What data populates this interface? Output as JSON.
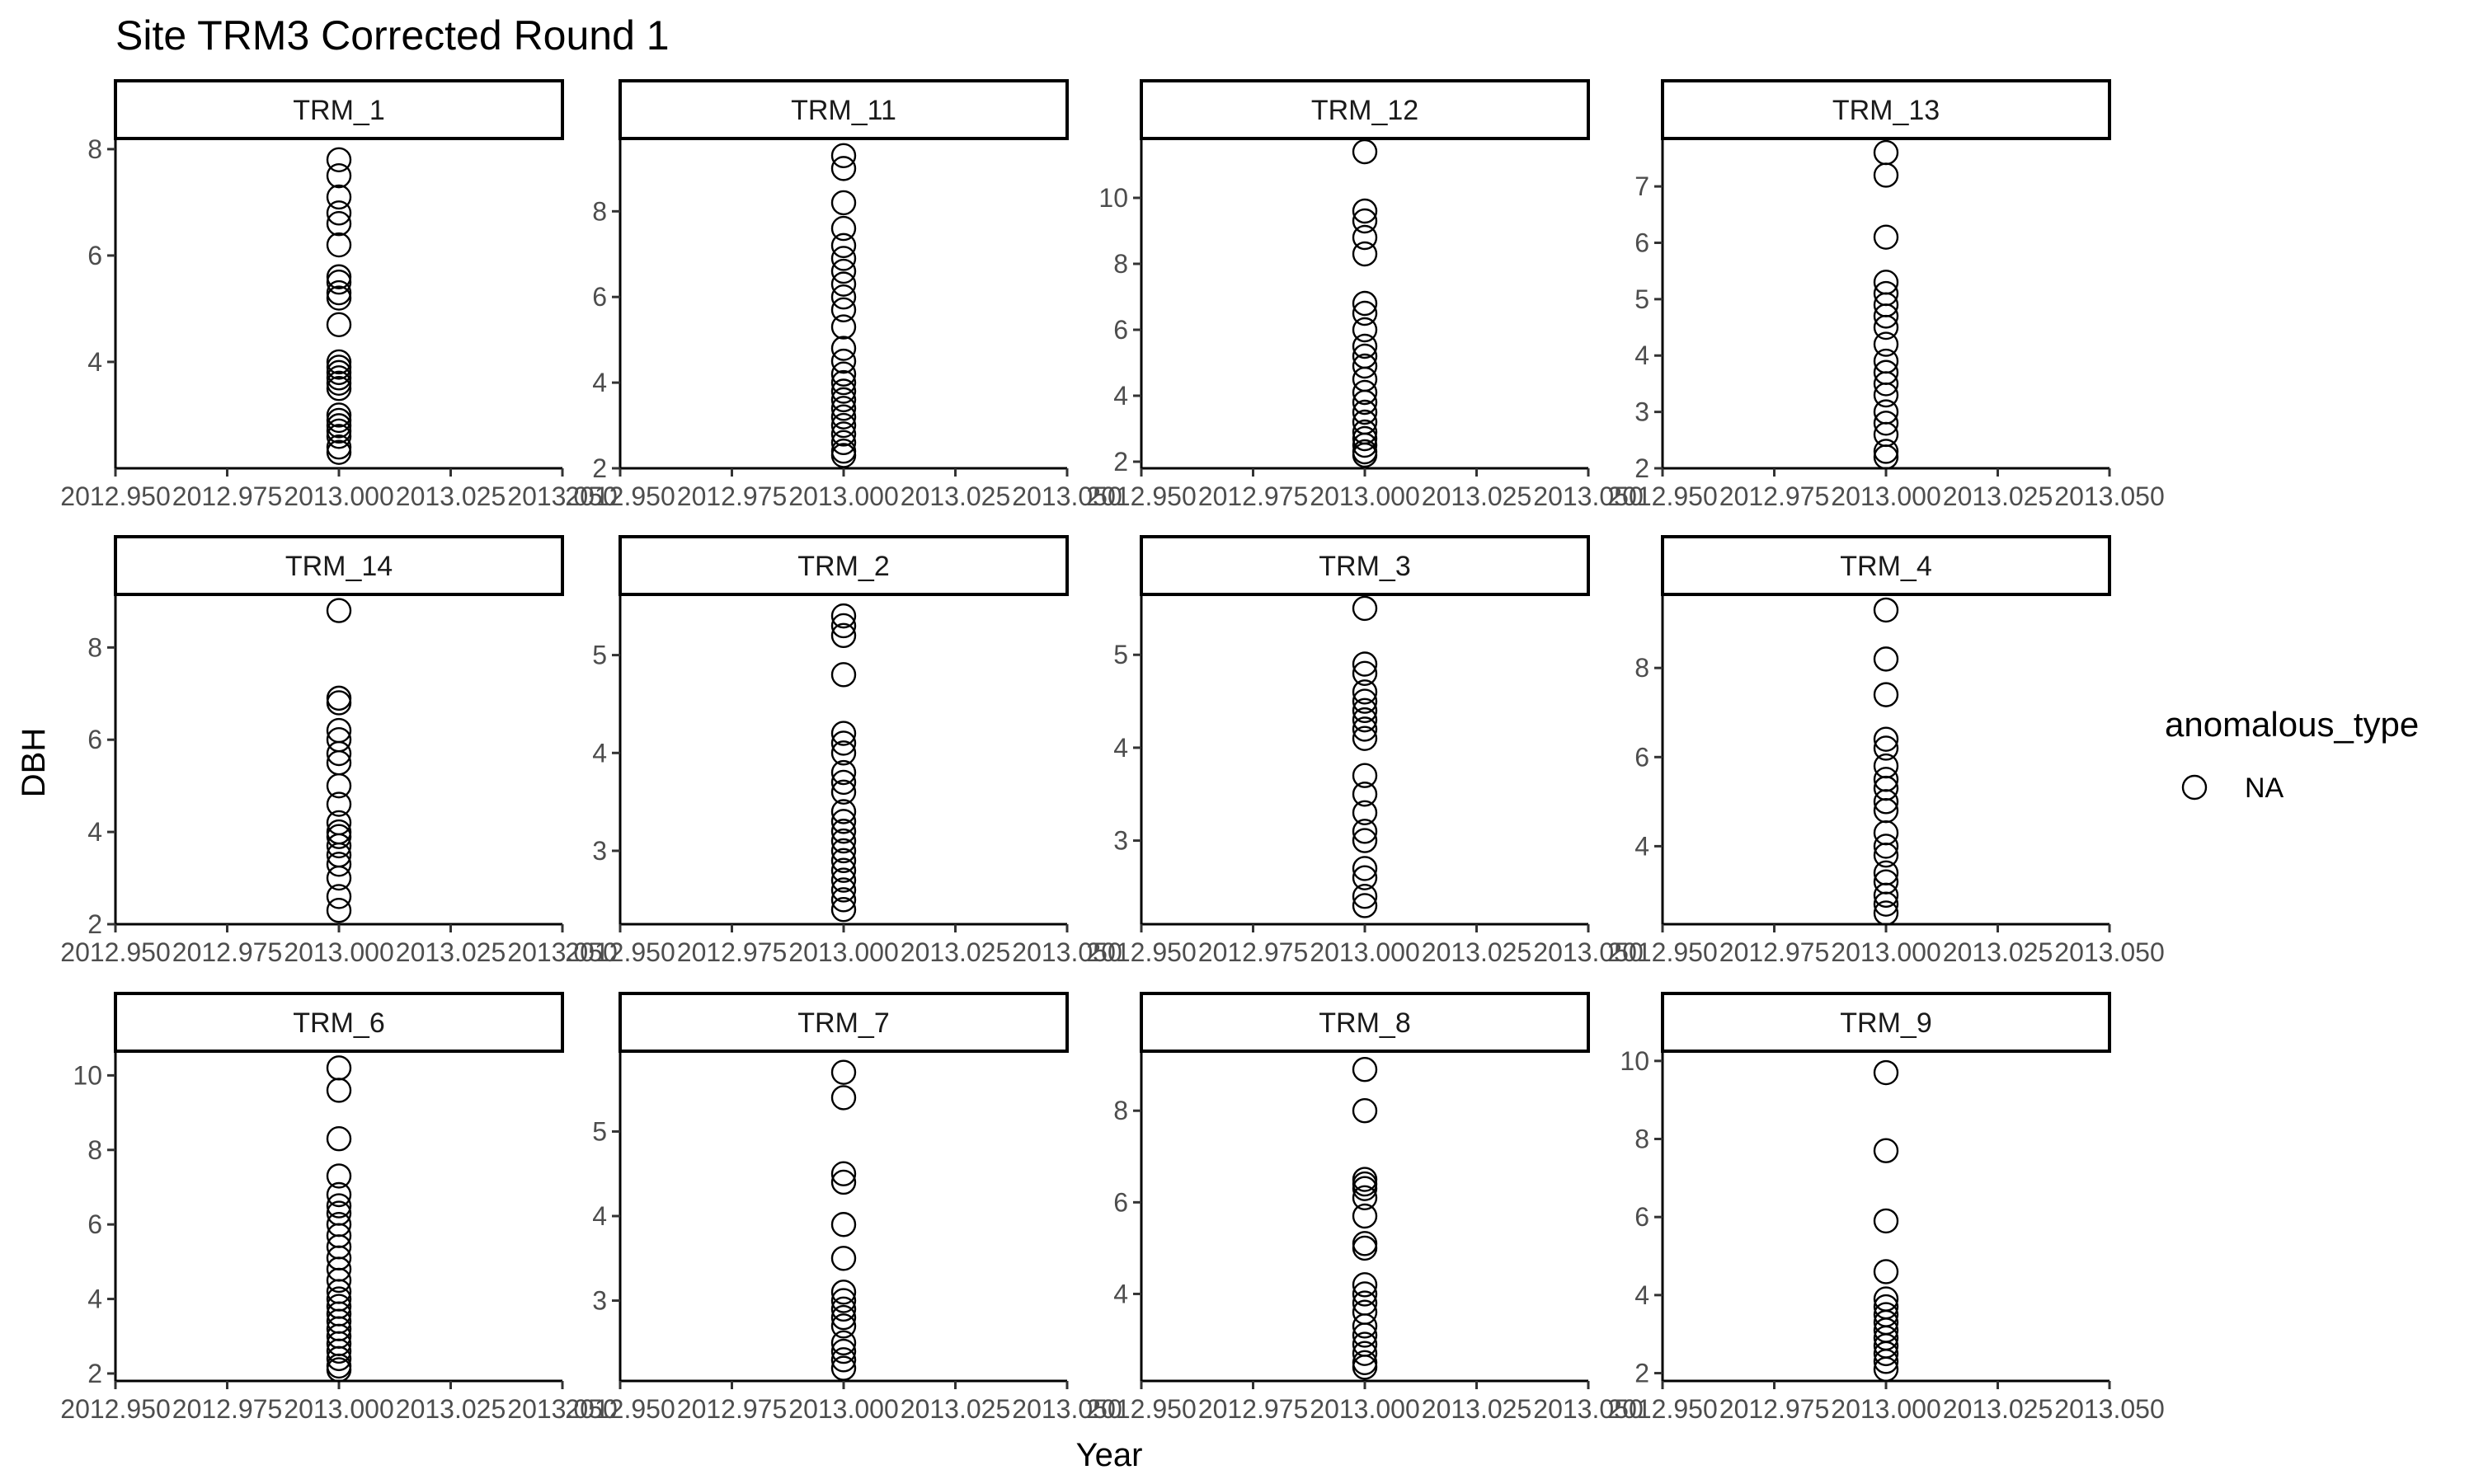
{
  "chart_data": {
    "type": "scatter",
    "title": "Site TRM3 Corrected Round 1",
    "xlabel": "Year",
    "ylabel": "DBH",
    "xlim": [
      2012.95,
      2013.05
    ],
    "x_ticks": [
      "2012.950",
      "2012.975",
      "2013.000",
      "2013.025",
      "2013.050"
    ],
    "grid": false,
    "legend": {
      "title": "anomalous_type",
      "placement": "right",
      "entries": [
        {
          "label": "NA",
          "marker": "open-circle"
        }
      ]
    },
    "facets": [
      {
        "label": "TRM_1",
        "ylim": [
          2.0,
          8.2
        ],
        "y_ticks": [
          4,
          6,
          8
        ],
        "x": 2013.0,
        "values": [
          7.8,
          7.5,
          7.1,
          6.8,
          6.6,
          6.2,
          5.6,
          5.5,
          5.3,
          5.2,
          4.7,
          4.0,
          3.9,
          3.8,
          3.7,
          3.6,
          3.5,
          3.0,
          2.9,
          2.8,
          2.7,
          2.6,
          2.4,
          2.3
        ]
      },
      {
        "label": "TRM_11",
        "ylim": [
          2.0,
          9.7
        ],
        "y_ticks": [
          2,
          4,
          6,
          8
        ],
        "x": 2013.0,
        "values": [
          9.3,
          9.0,
          8.2,
          7.6,
          7.2,
          6.9,
          6.6,
          6.3,
          6.0,
          5.7,
          5.3,
          4.8,
          4.5,
          4.2,
          4.0,
          3.8,
          3.6,
          3.4,
          3.2,
          3.0,
          2.8,
          2.6,
          2.4,
          2.3
        ]
      },
      {
        "label": "TRM_12",
        "ylim": [
          1.8,
          11.8
        ],
        "y_ticks": [
          2,
          4,
          6,
          8,
          10
        ],
        "x": 2013.0,
        "values": [
          11.4,
          9.6,
          9.3,
          8.8,
          8.3,
          6.8,
          6.5,
          6.0,
          5.5,
          5.2,
          4.9,
          4.5,
          4.1,
          3.8,
          3.5,
          3.2,
          2.9,
          2.7,
          2.5,
          2.3,
          2.2
        ]
      },
      {
        "label": "TRM_13",
        "ylim": [
          2.0,
          7.85
        ],
        "y_ticks": [
          2,
          3,
          4,
          5,
          6,
          7
        ],
        "x": 2013.0,
        "values": [
          7.6,
          7.2,
          6.1,
          5.3,
          5.1,
          4.9,
          4.7,
          4.5,
          4.2,
          3.9,
          3.7,
          3.5,
          3.3,
          3.0,
          2.8,
          2.6,
          2.3,
          2.2
        ]
      },
      {
        "label": "TRM_14",
        "ylim": [
          2.0,
          9.15
        ],
        "y_ticks": [
          2,
          4,
          6,
          8
        ],
        "x": 2013.0,
        "values": [
          8.8,
          6.9,
          6.8,
          6.2,
          6.0,
          5.7,
          5.5,
          5.0,
          4.6,
          4.2,
          4.0,
          3.9,
          3.7,
          3.5,
          3.3,
          3.0,
          2.6,
          2.3
        ]
      },
      {
        "label": "TRM_2",
        "ylim": [
          2.25,
          5.62
        ],
        "y_ticks": [
          3,
          4,
          5
        ],
        "x": 2013.0,
        "values": [
          5.4,
          5.3,
          5.2,
          4.8,
          4.2,
          4.1,
          4.0,
          3.8,
          3.7,
          3.6,
          3.4,
          3.3,
          3.2,
          3.1,
          3.0,
          2.9,
          2.8,
          2.7,
          2.6,
          2.5,
          2.4
        ]
      },
      {
        "label": "TRM_3",
        "ylim": [
          2.1,
          5.65
        ],
        "y_ticks": [
          3,
          4,
          5
        ],
        "x": 2013.0,
        "values": [
          5.5,
          4.9,
          4.8,
          4.6,
          4.5,
          4.4,
          4.3,
          4.2,
          4.1,
          3.7,
          3.5,
          3.3,
          3.1,
          3.0,
          2.7,
          2.6,
          2.4,
          2.3
        ]
      },
      {
        "label": "TRM_4",
        "ylim": [
          2.25,
          9.65
        ],
        "y_ticks": [
          4,
          6,
          8
        ],
        "x": 2013.0,
        "values": [
          9.3,
          8.2,
          7.4,
          6.4,
          6.2,
          5.8,
          5.5,
          5.3,
          5.0,
          4.8,
          4.3,
          4.0,
          3.8,
          3.4,
          3.2,
          2.9,
          2.7,
          2.5
        ]
      },
      {
        "label": "TRM_6",
        "ylim": [
          1.8,
          10.65
        ],
        "y_ticks": [
          2,
          4,
          6,
          8,
          10
        ],
        "x": 2013.0,
        "values": [
          10.2,
          9.6,
          8.3,
          7.3,
          6.8,
          6.5,
          6.3,
          6.0,
          5.7,
          5.4,
          5.1,
          4.8,
          4.5,
          4.2,
          4.0,
          3.8,
          3.6,
          3.4,
          3.2,
          3.0,
          2.8,
          2.6,
          2.4,
          2.2,
          2.1
        ]
      },
      {
        "label": "TRM_7",
        "ylim": [
          2.05,
          5.95
        ],
        "y_ticks": [
          3,
          4,
          5
        ],
        "x": 2013.0,
        "values": [
          5.7,
          5.4,
          4.5,
          4.4,
          3.9,
          3.5,
          3.1,
          3.0,
          2.9,
          2.8,
          2.7,
          2.5,
          2.4,
          2.3,
          2.2
        ]
      },
      {
        "label": "TRM_8",
        "ylim": [
          2.1,
          9.3
        ],
        "y_ticks": [
          4,
          6,
          8
        ],
        "x": 2013.0,
        "values": [
          8.9,
          8.0,
          6.5,
          6.4,
          6.3,
          6.1,
          5.7,
          5.1,
          5.0,
          4.2,
          4.0,
          3.8,
          3.6,
          3.3,
          3.1,
          2.9,
          2.7,
          2.5,
          2.4
        ]
      },
      {
        "label": "TRM_9",
        "ylim": [
          1.8,
          10.25
        ],
        "y_ticks": [
          2,
          4,
          6,
          8,
          10
        ],
        "x": 2013.0,
        "values": [
          9.7,
          7.7,
          5.9,
          4.6,
          3.9,
          3.7,
          3.5,
          3.3,
          3.1,
          2.9,
          2.7,
          2.5,
          2.3,
          2.1
        ]
      }
    ]
  }
}
